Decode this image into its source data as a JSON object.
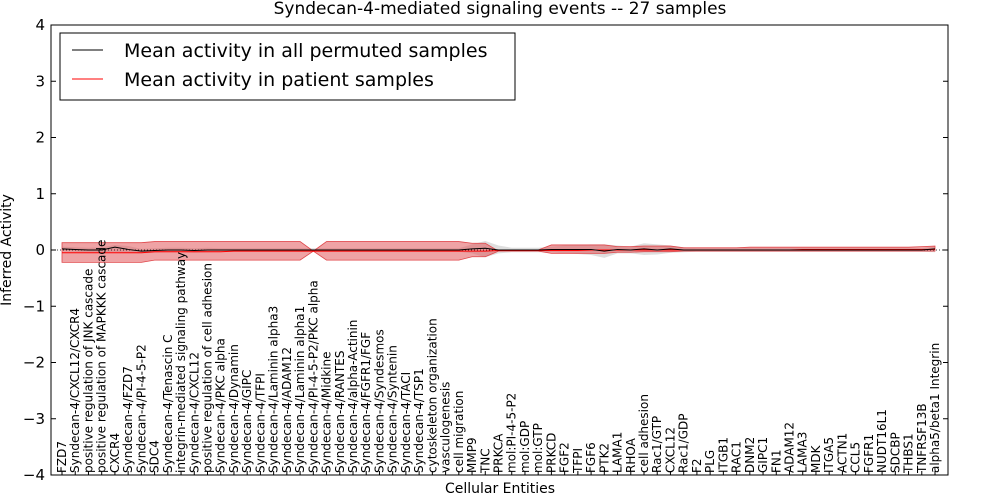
{
  "chart_data": {
    "type": "line",
    "title": "Syndecan-4-mediated signaling events -- 27 samples",
    "xlabel": "Cellular Entities",
    "ylabel": "Inferred Activity",
    "ylim": [
      -4,
      4
    ],
    "yticks": [
      -4,
      -3,
      -2,
      -1,
      0,
      1,
      2,
      3,
      4
    ],
    "ytick_labels": [
      "−4",
      "−3",
      "−2",
      "−1",
      "0",
      "1",
      "2",
      "3",
      "4"
    ],
    "legend_position": "top-left",
    "categories": [
      "FZD7",
      "Syndecan-4/CXCL12/CXCR4",
      "positive regulation of JNK cascade",
      "positive regulation of MAPKKK cascade",
      "CXCR4",
      "Syndecan-4/FZD7",
      "Syndecan-4/PI-4-5-P2",
      "SDC4",
      "Syndecan-4/Tenascin C",
      "integrin-mediated signaling pathway",
      "Syndecan-4/CXCL12",
      "positive regulation of cell adhesion",
      "Syndecan-4/PKC alpha",
      "Syndecan-4/Dynamin",
      "Syndecan-4/GIPC",
      "Syndecan-4/TFPI",
      "Syndecan-4/Laminin alpha3",
      "Syndecan-4/ADAM12",
      "Syndecan-4/Laminin alpha1",
      "Syndecan-4/PI-4-5-P2/PKC alpha",
      "Syndecan-4/Midkine",
      "Syndecan-4/RANTES",
      "Syndecan-4/alpha-Actinin",
      "Syndecan-4/FGFR1/FGF",
      "Syndecan-4/Syndesmos",
      "Syndecan-4/Syntenin",
      "Syndecan-4/TACI",
      "Syndecan-4/TSP1",
      "cytoskeleton organization",
      "vasculogenesis",
      "cell migration",
      "MMP9",
      "TNC",
      "PRKCA",
      "mol:PI-4-5-P2",
      "mol:GDP",
      "mol:GTP",
      "PRKCD",
      "FGF2",
      "TFPI",
      "FGF6",
      "PTK2",
      "LAMA1",
      "RHOA",
      "cell adhesion",
      "Rac1/GTP",
      "CXCL12",
      "Rac1/GDP",
      "F2",
      "PLG",
      "ITGB1",
      "RAC1",
      "DNM2",
      "GIPC1",
      "FN1",
      "ADAM12",
      "LAMA3",
      "MDK",
      "ITGA5",
      "ACTN1",
      "CCL5",
      "FGFR1",
      "NUDT16L1",
      "SDCBP",
      "THBS1",
      "TNFRSF13B",
      "alpha5/beta1 Integrin"
    ],
    "series": [
      {
        "name": "Mean activity in all permuted samples",
        "color": "#000000",
        "values": [
          0.02,
          0.01,
          0.0,
          0.0,
          0.05,
          0.01,
          -0.02,
          -0.01,
          0.0,
          0.0,
          -0.01,
          0.0,
          0.0,
          0.0,
          0.0,
          0.0,
          0.0,
          0.0,
          0.0,
          0.0,
          0.0,
          0.0,
          0.0,
          0.0,
          0.0,
          0.0,
          0.0,
          0.0,
          0.0,
          0.0,
          0.0,
          0.02,
          0.03,
          0.0,
          0.0,
          0.0,
          0.0,
          0.01,
          0.01,
          0.01,
          0.01,
          -0.02,
          0.01,
          0.0,
          0.02,
          0.0,
          0.02,
          0.0,
          0.0,
          0.0,
          0.0,
          0.0,
          0.0,
          0.0,
          0.0,
          0.0,
          0.0,
          0.0,
          0.0,
          0.0,
          0.0,
          0.0,
          0.0,
          0.0,
          0.0,
          0.0,
          0.02
        ],
        "lower": [
          -0.02,
          -0.03,
          -0.04,
          -0.04,
          -0.03,
          -0.05,
          -0.06,
          -0.05,
          -0.04,
          -0.04,
          -0.05,
          -0.04,
          -0.03,
          -0.03,
          -0.03,
          -0.03,
          -0.03,
          -0.03,
          -0.03,
          -0.03,
          -0.03,
          -0.03,
          -0.03,
          -0.03,
          -0.03,
          -0.03,
          -0.03,
          -0.03,
          -0.03,
          -0.03,
          -0.03,
          -0.06,
          -0.13,
          -0.06,
          -0.04,
          -0.04,
          -0.04,
          -0.04,
          -0.06,
          -0.07,
          -0.09,
          -0.14,
          -0.06,
          -0.06,
          -0.09,
          -0.08,
          -0.05,
          -0.04,
          -0.03,
          -0.03,
          -0.03,
          -0.03,
          -0.03,
          -0.03,
          -0.03,
          -0.03,
          -0.03,
          -0.03,
          -0.03,
          -0.03,
          -0.03,
          -0.03,
          -0.03,
          -0.03,
          -0.03,
          -0.03,
          -0.04
        ],
        "upper": [
          0.06,
          0.05,
          0.04,
          0.05,
          0.09,
          0.07,
          0.02,
          0.03,
          0.04,
          0.04,
          0.03,
          0.04,
          0.03,
          0.03,
          0.03,
          0.03,
          0.03,
          0.03,
          0.03,
          0.03,
          0.03,
          0.03,
          0.03,
          0.03,
          0.03,
          0.03,
          0.03,
          0.03,
          0.03,
          0.03,
          0.03,
          0.1,
          0.16,
          0.08,
          0.04,
          0.04,
          0.04,
          0.06,
          0.08,
          0.09,
          0.1,
          0.1,
          0.08,
          0.06,
          0.12,
          0.1,
          0.08,
          0.05,
          0.03,
          0.03,
          0.03,
          0.03,
          0.03,
          0.03,
          0.03,
          0.03,
          0.03,
          0.03,
          0.03,
          0.03,
          0.03,
          0.03,
          0.03,
          0.03,
          0.03,
          0.03,
          0.06
        ]
      },
      {
        "name": "Mean activity in patient samples",
        "color": "#ff0000",
        "values": [
          -0.05,
          -0.05,
          -0.05,
          -0.05,
          -0.05,
          -0.05,
          -0.05,
          -0.03,
          -0.03,
          -0.03,
          -0.03,
          -0.03,
          -0.03,
          -0.02,
          -0.02,
          -0.02,
          -0.02,
          -0.02,
          -0.02,
          -0.02,
          -0.02,
          -0.02,
          -0.02,
          -0.02,
          -0.02,
          -0.02,
          -0.02,
          -0.02,
          -0.02,
          -0.02,
          -0.02,
          -0.02,
          -0.02,
          -0.01,
          -0.01,
          -0.01,
          -0.01,
          -0.01,
          -0.01,
          -0.01,
          0.0,
          0.0,
          0.0,
          0.0,
          0.0,
          0.0,
          0.0,
          0.0,
          0.0,
          0.0,
          0.0,
          0.0,
          0.0,
          0.0,
          0.0,
          0.0,
          0.01,
          0.01,
          0.01,
          0.01,
          0.01,
          0.01,
          0.01,
          0.01,
          0.01,
          0.01,
          0.01
        ],
        "lower": [
          -0.22,
          -0.22,
          -0.22,
          -0.22,
          -0.22,
          -0.22,
          -0.22,
          -0.18,
          -0.18,
          -0.18,
          -0.18,
          -0.18,
          -0.18,
          -0.18,
          -0.18,
          -0.18,
          -0.18,
          -0.18,
          -0.18,
          -0.02,
          -0.18,
          -0.18,
          -0.18,
          -0.18,
          -0.18,
          -0.18,
          -0.18,
          -0.18,
          -0.18,
          -0.18,
          -0.18,
          -0.12,
          -0.12,
          -0.02,
          -0.02,
          -0.02,
          -0.02,
          -0.06,
          -0.06,
          -0.06,
          -0.06,
          -0.06,
          -0.04,
          -0.04,
          -0.03,
          -0.03,
          -0.03,
          -0.02,
          -0.02,
          -0.02,
          -0.02,
          -0.02,
          -0.02,
          -0.02,
          -0.02,
          -0.02,
          -0.02,
          -0.02,
          -0.02,
          -0.02,
          -0.02,
          -0.02,
          -0.02,
          -0.02,
          -0.02,
          -0.02,
          -0.02
        ],
        "upper": [
          0.13,
          0.13,
          0.13,
          0.13,
          0.13,
          0.13,
          0.13,
          0.15,
          0.15,
          0.15,
          0.15,
          0.15,
          0.15,
          0.15,
          0.15,
          0.15,
          0.15,
          0.15,
          0.15,
          -0.02,
          0.15,
          0.15,
          0.15,
          0.15,
          0.15,
          0.15,
          0.15,
          0.15,
          0.15,
          0.15,
          0.15,
          0.12,
          0.12,
          -0.02,
          0.0,
          0.0,
          0.0,
          0.09,
          0.09,
          0.09,
          0.09,
          0.09,
          0.06,
          0.06,
          0.07,
          0.07,
          0.07,
          0.04,
          0.04,
          0.04,
          0.04,
          0.04,
          0.05,
          0.05,
          0.05,
          0.05,
          0.05,
          0.05,
          0.05,
          0.05,
          0.05,
          0.05,
          0.05,
          0.05,
          0.05,
          0.06,
          0.07
        ]
      }
    ]
  }
}
